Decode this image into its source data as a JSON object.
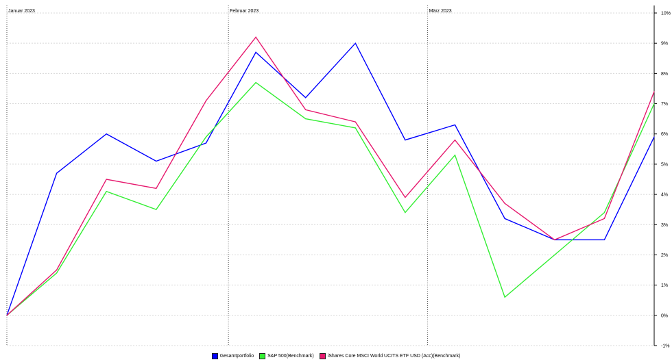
{
  "chart_data": {
    "type": "line",
    "x_index": [
      0,
      1,
      2,
      3,
      4,
      5,
      6,
      7,
      8,
      9,
      10,
      11,
      12,
      13
    ],
    "series": [
      {
        "name": "Gesamtportfolio",
        "color": "#0000ff",
        "values": [
          0.0,
          4.7,
          6.0,
          5.1,
          5.7,
          8.7,
          7.2,
          9.0,
          5.8,
          6.3,
          3.2,
          2.5,
          2.5,
          5.9
        ]
      },
      {
        "name": "S&P 500(Benchmark)",
        "color": "#33ee33",
        "values": [
          0.0,
          1.4,
          4.1,
          3.5,
          5.9,
          7.7,
          6.5,
          6.2,
          3.4,
          5.3,
          0.6,
          2.0,
          3.4,
          7.0
        ]
      },
      {
        "name": "iShares Core MSCI World UCITS ETF USD (Acc)(Benchmark)",
        "color": "#e6196e",
        "values": [
          0.0,
          1.5,
          4.5,
          4.2,
          7.1,
          9.2,
          6.8,
          6.4,
          3.9,
          5.8,
          3.7,
          2.5,
          3.2,
          7.4
        ]
      }
    ],
    "months": [
      {
        "label": "Januar 2023",
        "at_index": 0
      },
      {
        "label": "Februar 2023",
        "at_index": 4.45
      },
      {
        "label": "März 2023",
        "at_index": 8.45
      }
    ],
    "yticks": [
      "10%",
      "9%",
      "8%",
      "7%",
      "6%",
      "5%",
      "4%",
      "3%",
      "2%",
      "1%",
      "0%",
      "-1%"
    ],
    "ytick_values": [
      10,
      9,
      8,
      7,
      6,
      5,
      4,
      3,
      2,
      1,
      0,
      -1
    ],
    "ylim": [
      -1,
      10
    ],
    "y_axis_position": "right",
    "grid": true,
    "legend_position": "bottom"
  }
}
